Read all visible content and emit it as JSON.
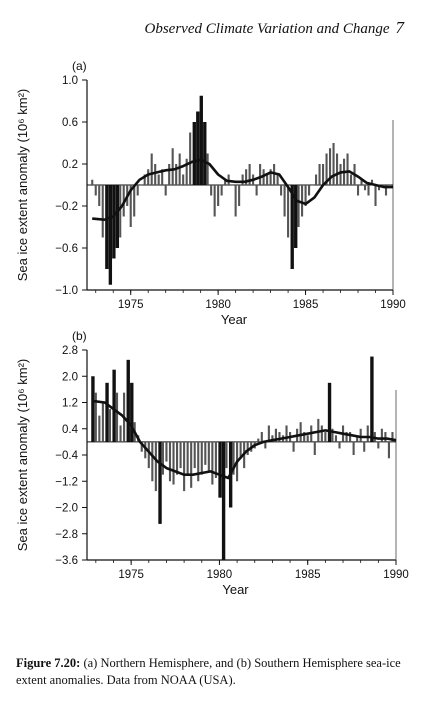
{
  "page": {
    "header_title": "Observed Climate Variation and Change",
    "page_number": "7"
  },
  "caption": {
    "label": "Figure 7.20:",
    "text": "(a)  Northern Hemisphere, and  (b) Southern Hemisphere sea-ice extent anomalies.  Data from NOAA (USA)."
  },
  "chart_data": [
    {
      "type": "bar",
      "panel_label": "(a)",
      "xlabel": "Year",
      "ylabel": "Sea ice extent anomaly (10⁶ km²)",
      "xlim": [
        1972.5,
        1990
      ],
      "ylim": [
        -1.0,
        1.0
      ],
      "x_ticks": [
        1975,
        1980,
        1985,
        1990
      ],
      "y_ticks": [
        -1.0,
        -0.6,
        -0.2,
        0.2,
        0.6,
        1.0
      ],
      "y_tick_labels": [
        "−1.0",
        "−0.6",
        "−0.2",
        "0.2",
        "0.6",
        "1.0"
      ],
      "grid": false,
      "bars_x": [
        1972.8,
        1973.0,
        1973.2,
        1973.4,
        1973.6,
        1973.8,
        1974.0,
        1974.2,
        1974.4,
        1974.6,
        1974.8,
        1975.0,
        1975.2,
        1975.4,
        1975.6,
        1975.8,
        1976.0,
        1976.2,
        1976.4,
        1976.6,
        1976.8,
        1977.0,
        1977.2,
        1977.4,
        1977.6,
        1977.8,
        1978.0,
        1978.2,
        1978.4,
        1978.6,
        1978.8,
        1979.0,
        1979.2,
        1979.4,
        1979.6,
        1979.8,
        1980.0,
        1980.2,
        1980.4,
        1980.6,
        1980.8,
        1981.0,
        1981.2,
        1981.4,
        1981.6,
        1981.8,
        1982.0,
        1982.2,
        1982.4,
        1982.6,
        1982.8,
        1983.0,
        1983.2,
        1983.4,
        1983.6,
        1983.8,
        1984.0,
        1984.2,
        1984.4,
        1984.6,
        1984.8,
        1985.0,
        1985.2,
        1985.4,
        1985.6,
        1985.8,
        1986.0,
        1986.2,
        1986.4,
        1986.6,
        1986.8,
        1987.0,
        1987.2,
        1987.4,
        1987.6,
        1987.8,
        1988.0,
        1988.2,
        1988.4,
        1988.6,
        1988.8,
        1989.0,
        1989.2,
        1989.4,
        1989.6,
        1989.8
      ],
      "bars_y": [
        0.05,
        -0.1,
        -0.2,
        -0.5,
        -0.8,
        -0.95,
        -0.7,
        -0.6,
        -0.5,
        -0.3,
        -0.2,
        -0.4,
        -0.3,
        -0.1,
        0.0,
        0.1,
        0.15,
        0.3,
        0.2,
        0.1,
        0.15,
        -0.1,
        0.2,
        0.35,
        0.2,
        0.3,
        0.1,
        0.25,
        0.5,
        0.6,
        0.7,
        0.85,
        0.6,
        0.3,
        -0.1,
        -0.3,
        -0.2,
        -0.1,
        0.05,
        0.1,
        0.0,
        -0.3,
        -0.2,
        0.1,
        0.15,
        0.2,
        0.1,
        -0.1,
        0.2,
        0.15,
        0.1,
        0.15,
        0.2,
        0.1,
        -0.1,
        -0.3,
        -0.5,
        -0.8,
        -0.6,
        -0.4,
        -0.3,
        -0.2,
        -0.1,
        0.0,
        0.1,
        0.2,
        0.2,
        0.3,
        0.35,
        0.4,
        0.3,
        0.2,
        0.25,
        0.3,
        0.1,
        0.2,
        -0.1,
        0.05,
        -0.05,
        -0.1,
        0.05,
        -0.2,
        -0.05,
        0.0,
        -0.1,
        0.0
      ],
      "smoothed_x": [
        1972.8,
        1973.5,
        1974.0,
        1974.5,
        1975.0,
        1975.5,
        1976.0,
        1976.5,
        1977.0,
        1977.5,
        1978.0,
        1978.5,
        1979.0,
        1979.5,
        1980.0,
        1980.5,
        1981.0,
        1981.5,
        1982.0,
        1982.5,
        1983.0,
        1983.5,
        1984.0,
        1984.5,
        1985.0,
        1985.5,
        1986.0,
        1986.5,
        1987.0,
        1987.5,
        1988.0,
        1988.5,
        1989.0,
        1989.5,
        1990.0
      ],
      "smoothed_y": [
        -0.32,
        -0.33,
        -0.3,
        -0.2,
        -0.05,
        0.05,
        0.1,
        0.12,
        0.14,
        0.15,
        0.18,
        0.22,
        0.24,
        0.2,
        0.1,
        0.04,
        0.03,
        0.03,
        0.05,
        0.08,
        0.12,
        0.1,
        -0.02,
        -0.15,
        -0.18,
        -0.12,
        0.0,
        0.08,
        0.12,
        0.13,
        0.08,
        0.02,
        0.0,
        -0.02,
        -0.02
      ]
    },
    {
      "type": "bar",
      "panel_label": "(b)",
      "xlabel": "Year",
      "ylabel": "Sea ice extent anomaly (10⁶ km²)",
      "xlim": [
        1972.5,
        1990
      ],
      "ylim": [
        -3.6,
        2.8
      ],
      "x_ticks": [
        1975,
        1980,
        1985,
        1990
      ],
      "y_ticks": [
        -3.6,
        -2.8,
        -2.0,
        -1.2,
        -0.4,
        0.4,
        1.2,
        2.0,
        2.8
      ],
      "y_tick_labels": [
        "−3.6",
        "−2.8",
        "−2.0",
        "−1.2",
        "−0.4",
        "0.4",
        "1.2",
        "2.0",
        "2.8"
      ],
      "grid": false,
      "bars_x": [
        1972.8,
        1973.0,
        1973.2,
        1973.4,
        1973.6,
        1973.8,
        1974.0,
        1974.2,
        1974.4,
        1974.6,
        1974.8,
        1975.0,
        1975.2,
        1975.4,
        1975.6,
        1975.8,
        1976.0,
        1976.2,
        1976.4,
        1976.6,
        1976.8,
        1977.0,
        1977.2,
        1977.4,
        1977.6,
        1977.8,
        1978.0,
        1978.2,
        1978.4,
        1978.6,
        1978.8,
        1979.0,
        1979.2,
        1979.4,
        1979.6,
        1979.8,
        1980.0,
        1980.2,
        1980.4,
        1980.6,
        1980.8,
        1981.0,
        1981.2,
        1981.4,
        1981.6,
        1981.8,
        1982.0,
        1982.2,
        1982.4,
        1982.6,
        1982.8,
        1983.0,
        1983.2,
        1983.4,
        1983.6,
        1983.8,
        1984.0,
        1984.2,
        1984.4,
        1984.6,
        1984.8,
        1985.0,
        1985.2,
        1985.4,
        1985.6,
        1985.8,
        1986.0,
        1986.2,
        1986.4,
        1986.6,
        1986.8,
        1987.0,
        1987.2,
        1987.4,
        1987.6,
        1987.8,
        1988.0,
        1988.2,
        1988.4,
        1988.6,
        1988.8,
        1989.0,
        1989.2,
        1989.4,
        1989.6,
        1989.8
      ],
      "bars_y": [
        2.0,
        1.5,
        0.8,
        1.2,
        1.8,
        1.0,
        2.2,
        1.5,
        0.5,
        1.5,
        2.5,
        1.8,
        0.6,
        0.2,
        -0.3,
        -0.5,
        -0.8,
        -1.2,
        -1.5,
        -2.5,
        -1.0,
        -0.6,
        -1.2,
        -1.3,
        -1.0,
        -0.8,
        -1.5,
        -1.0,
        -1.4,
        -0.8,
        -1.2,
        -1.0,
        -0.7,
        -0.9,
        -1.3,
        -1.1,
        -1.7,
        -3.6,
        -0.8,
        -2.0,
        -1.0,
        -1.2,
        -0.5,
        -0.8,
        -0.4,
        -0.3,
        -0.2,
        0.1,
        0.3,
        -0.2,
        0.5,
        0.2,
        0.4,
        0.3,
        0.2,
        0.5,
        0.3,
        -0.3,
        0.4,
        0.6,
        0.3,
        0.2,
        0.5,
        -0.4,
        0.7,
        0.5,
        0.3,
        1.8,
        0.4,
        0.2,
        -0.2,
        0.5,
        0.3,
        0.3,
        -0.4,
        0.2,
        0.4,
        -0.3,
        0.5,
        2.6,
        0.3,
        -0.2,
        0.4,
        0.3,
        -0.5,
        0.3
      ],
      "smoothed_x": [
        1972.8,
        1973.5,
        1974.0,
        1974.5,
        1975.0,
        1975.5,
        1976.0,
        1976.5,
        1977.0,
        1977.5,
        1978.0,
        1978.5,
        1979.0,
        1979.5,
        1980.0,
        1980.5,
        1981.0,
        1981.5,
        1982.0,
        1982.5,
        1983.0,
        1983.5,
        1984.0,
        1984.5,
        1985.0,
        1985.5,
        1986.0,
        1986.5,
        1987.0,
        1987.5,
        1988.0,
        1988.5,
        1989.0,
        1989.5,
        1990.0
      ],
      "smoothed_y": [
        1.25,
        1.2,
        1.0,
        0.8,
        0.5,
        0.0,
        -0.3,
        -0.6,
        -0.8,
        -0.9,
        -1.0,
        -1.0,
        -0.95,
        -0.9,
        -1.0,
        -1.1,
        -0.6,
        -0.3,
        -0.1,
        0.0,
        0.05,
        0.1,
        0.15,
        0.2,
        0.25,
        0.3,
        0.35,
        0.3,
        0.25,
        0.2,
        0.15,
        0.15,
        0.1,
        0.1,
        0.05
      ]
    }
  ]
}
